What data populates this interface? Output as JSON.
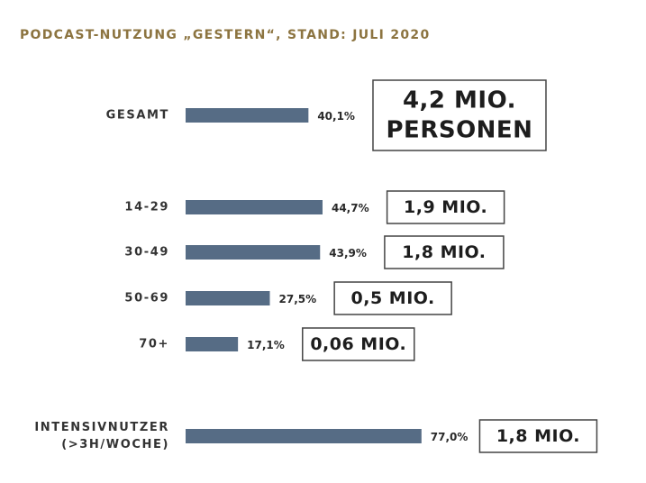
{
  "colors": {
    "title": "#8c7440",
    "bar": "#566c85",
    "box_border": "#444444"
  },
  "chart_data": {
    "type": "bar",
    "orientation": "horizontal",
    "title": "PODCAST-NUTZUNG „GESTERN“, STAND: JULI 2020",
    "categories": [
      [
        "GESAMT"
      ],
      [
        "14-29"
      ],
      [
        "30-49"
      ],
      [
        "50-69"
      ],
      [
        "70+"
      ],
      [
        "INTENSIVNUTZER",
        "(>3H/WOCHE)"
      ]
    ],
    "values": [
      40.1,
      44.7,
      43.9,
      27.5,
      17.1,
      77.0
    ],
    "value_labels": [
      "40,1%",
      "44,7%",
      "43,9%",
      "27,5%",
      "17,1%",
      "77,0%"
    ],
    "annotations": [
      [
        "4,2 MIO.",
        "PERSONEN"
      ],
      [
        "1,9 MIO."
      ],
      [
        "1,8 MIO."
      ],
      [
        "0,5 MIO."
      ],
      [
        "0,06 MIO."
      ],
      [
        "1,8 MIO."
      ]
    ],
    "unit": "%",
    "xlim": [
      0,
      100
    ],
    "grid": false,
    "legend": "none"
  }
}
